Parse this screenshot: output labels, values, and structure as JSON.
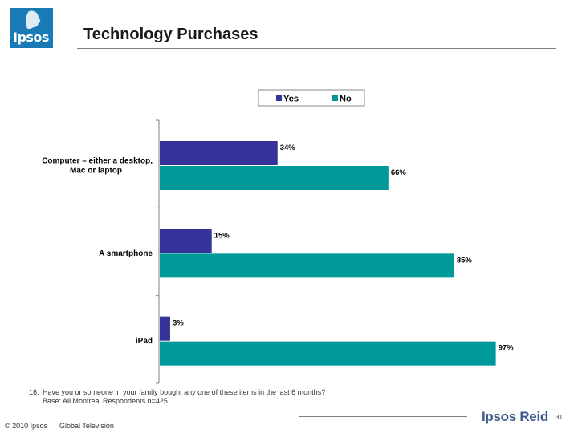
{
  "header": {
    "logo_text": "Ipsos",
    "title": "Technology Purchases"
  },
  "chart_data": {
    "type": "bar",
    "orientation": "horizontal",
    "title": "",
    "xlabel": "",
    "ylabel": "",
    "xlim": [
      0,
      100
    ],
    "grid": false,
    "legend_position": "top",
    "categories": [
      [
        "Computer – either a desktop,",
        "Mac or laptop"
      ],
      [
        "A smartphone"
      ],
      [
        "iPad"
      ]
    ],
    "series": [
      {
        "name": "Yes",
        "color": "#333399",
        "values": [
          34,
          15,
          3
        ],
        "labels": [
          "34%",
          "15%",
          "3%"
        ]
      },
      {
        "name": "No",
        "color": "#009999",
        "values": [
          66,
          85,
          97
        ],
        "labels": [
          "66%",
          "85%",
          "97%"
        ]
      }
    ]
  },
  "footnote": {
    "number": "16.",
    "question": "Have you or someone in your family bought any one of these items in the last 6 months?",
    "base": "Base:  All Montreal Respondents n=425"
  },
  "footer": {
    "copyright": "© 2010 Ipsos",
    "client": "Global Television",
    "brand": "Ipsos Reid",
    "page_number": "31"
  }
}
